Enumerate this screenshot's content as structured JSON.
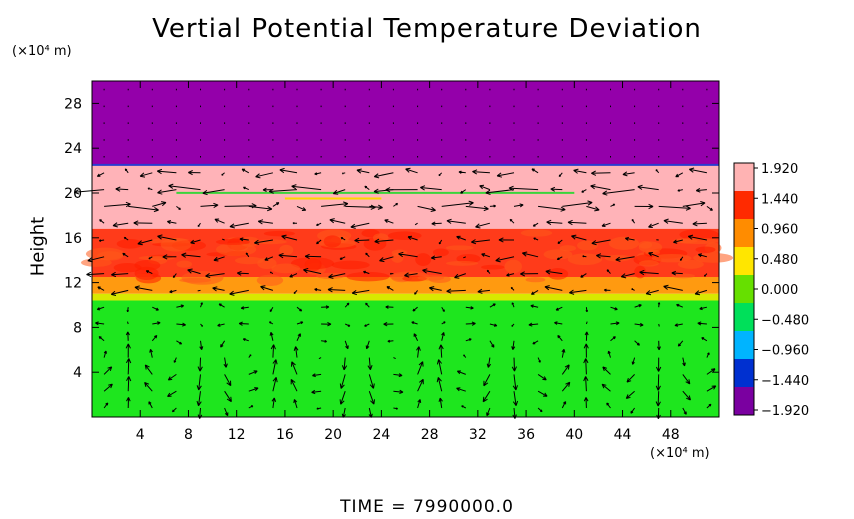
{
  "chart_data": {
    "type": "heatmap",
    "title": "Vertial Potential Temperature Deviation",
    "ylabel": "Height",
    "xlabel": "",
    "x_unit": "(×10⁴ m)",
    "y_unit": "(×10⁴ m)",
    "xlim": [
      0,
      52
    ],
    "ylim": [
      0,
      30
    ],
    "x_ticks": [
      "4",
      "8",
      "12",
      "16",
      "20",
      "24",
      "28",
      "32",
      "36",
      "40",
      "44",
      "48"
    ],
    "y_ticks": [
      "4",
      "8",
      "12",
      "16",
      "20",
      "24",
      "28"
    ],
    "x_tick_values": [
      4,
      8,
      12,
      16,
      20,
      24,
      28,
      32,
      36,
      40,
      44,
      48
    ],
    "y_tick_values": [
      4,
      8,
      12,
      16,
      20,
      24,
      28
    ],
    "colorbar": {
      "labels": [
        "1.920",
        "1.440",
        "0.960",
        "0.480",
        "0.000",
        "−0.480",
        "−0.960",
        "−1.440",
        "−1.920"
      ],
      "values": [
        1.92,
        1.44,
        0.96,
        0.48,
        0.0,
        -0.48,
        -0.96,
        -1.44,
        -1.92
      ],
      "colors": [
        "#ffb3b3",
        "#ff2a00",
        "#ff8c00",
        "#ffe600",
        "#66e000",
        "#00e05a",
        "#00b4ff",
        "#0030d0",
        "#7a00a0"
      ]
    },
    "bands": [
      {
        "y_from": 22.5,
        "y_to": 30,
        "value": -1.92,
        "color": "#9400aa"
      },
      {
        "y_from": 16.8,
        "y_to": 22.5,
        "value": 1.92,
        "color": "#ffb3b8"
      },
      {
        "y_from": 12.5,
        "y_to": 16.8,
        "value": 1.44,
        "color": "#ff3b1a"
      },
      {
        "y_from": 11.0,
        "y_to": 12.5,
        "value": 0.96,
        "color": "#ff9a10"
      },
      {
        "y_from": 10.4,
        "y_to": 11.0,
        "value": 0.48,
        "color": "#d8e800"
      },
      {
        "y_from": 0,
        "y_to": 10.4,
        "value": 0.0,
        "color": "#1ee61e"
      }
    ],
    "vectors": "wind vectors (arrows) overlaid on field"
  },
  "footer": {
    "time_label": "TIME  =  7990000.0"
  }
}
